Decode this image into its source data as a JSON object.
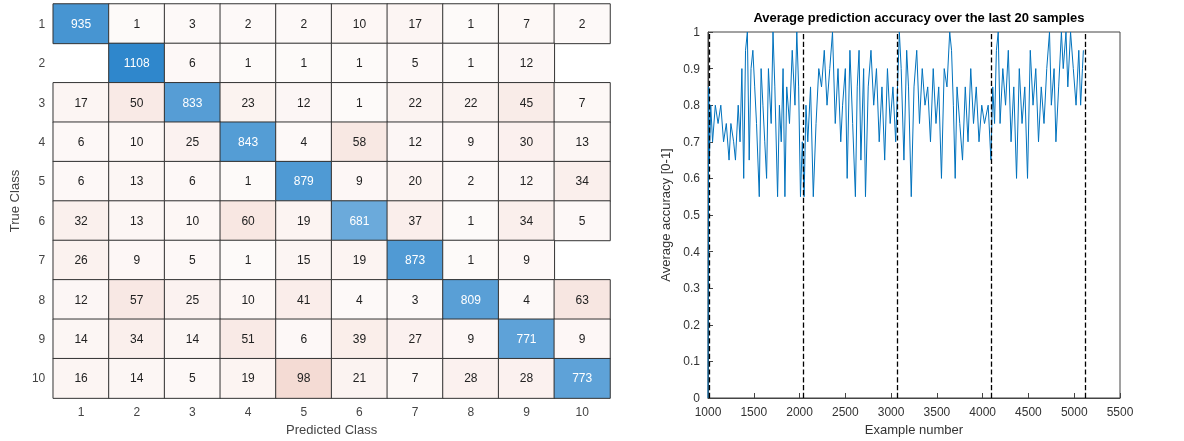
{
  "chart_data": [
    {
      "type": "heatmap",
      "xlabel": "Predicted Class",
      "ylabel": "True Class",
      "categories": [
        "1",
        "2",
        "3",
        "4",
        "5",
        "6",
        "7",
        "8",
        "9",
        "10"
      ],
      "y_categories": [
        "1",
        "2",
        "3",
        "4",
        "5",
        "6",
        "7",
        "8",
        "9",
        "10"
      ],
      "cells": [
        [
          935,
          1,
          3,
          2,
          2,
          10,
          17,
          1,
          7,
          2
        ],
        [
          null,
          1108,
          6,
          1,
          1,
          1,
          5,
          1,
          12,
          null
        ],
        [
          17,
          50,
          833,
          23,
          12,
          1,
          22,
          22,
          45,
          7
        ],
        [
          6,
          10,
          25,
          843,
          4,
          58,
          12,
          9,
          30,
          13
        ],
        [
          6,
          13,
          6,
          1,
          879,
          9,
          20,
          2,
          12,
          34
        ],
        [
          32,
          13,
          10,
          60,
          19,
          681,
          37,
          1,
          34,
          5
        ],
        [
          26,
          9,
          5,
          1,
          15,
          19,
          873,
          1,
          9,
          null
        ],
        [
          12,
          57,
          25,
          10,
          41,
          4,
          3,
          809,
          4,
          63
        ],
        [
          14,
          34,
          14,
          51,
          6,
          39,
          27,
          9,
          771,
          9
        ],
        [
          16,
          14,
          5,
          19,
          98,
          21,
          7,
          28,
          28,
          773
        ]
      ],
      "data_labels": true
    },
    {
      "type": "line",
      "title": "Average prediction accuracy over the last 20 samples",
      "xlabel": "Example number",
      "ylabel": "Average accuracy [0-1]",
      "x": [
        1000,
        1008,
        1015,
        1030,
        1050,
        1080,
        1110,
        1140,
        1170,
        1200,
        1230,
        1250,
        1280,
        1300,
        1330,
        1350,
        1370,
        1390,
        1410,
        1430,
        1450,
        1470,
        1490,
        1510,
        1530,
        1560,
        1580,
        1600,
        1620,
        1640,
        1660,
        1690,
        1710,
        1730,
        1760,
        1780,
        1800,
        1820,
        1840,
        1860,
        1890,
        1920,
        1950,
        1970,
        1990,
        2010,
        2030,
        2050,
        2070,
        2090,
        2120,
        2150,
        2180,
        2210,
        2240,
        2270,
        2300,
        2330,
        2360,
        2390,
        2420,
        2450,
        2470,
        2500,
        2520,
        2550,
        2580,
        2610,
        2630,
        2650,
        2670,
        2700,
        2720,
        2750,
        2780,
        2810,
        2840,
        2870,
        2900,
        2930,
        2960,
        2990,
        3020,
        3050,
        3070,
        3090,
        3110,
        3140,
        3170,
        3190,
        3220,
        3250,
        3280,
        3310,
        3340,
        3370,
        3400,
        3430,
        3460,
        3490,
        3520,
        3550,
        3580,
        3610,
        3640,
        3660,
        3680,
        3700,
        3720,
        3750,
        3780,
        3810,
        3840,
        3870,
        3900,
        3930,
        3960,
        3990,
        4020,
        4060,
        4090,
        4110,
        4130,
        4150,
        4170,
        4190,
        4220,
        4250,
        4280,
        4310,
        4340,
        4370,
        4400,
        4430,
        4460,
        4490,
        4520,
        4550,
        4580,
        4610,
        4640,
        4670,
        4700,
        4730,
        4750,
        4780,
        4800,
        4830,
        4860,
        4880,
        4910,
        4930,
        4960,
        4990,
        5020,
        5050,
        5070,
        5090,
        5100
      ],
      "series": [
        {
          "color": "#0072bd",
          "values": [
            0,
            0.85,
            0.65,
            0.8,
            0.7,
            0.8,
            0.75,
            0.8,
            0.7,
            0.75,
            0.65,
            0.75,
            0.7,
            0.65,
            0.8,
            0.7,
            0.9,
            0.6,
            0.95,
            1,
            0.65,
            0.9,
            0.95,
            0.85,
            0.75,
            0.55,
            0.9,
            0.8,
            0.7,
            0.6,
            0.9,
            0.75,
            1,
            0.85,
            0.55,
            0.8,
            0.7,
            0.9,
            0.55,
            0.85,
            0.75,
            0.95,
            0.8,
            1,
            0.85,
            0.55,
            0.7,
            0.55,
            0.8,
            0.7,
            0.85,
            0.55,
            0.75,
            0.9,
            0.85,
            0.95,
            0.8,
            0.9,
            1,
            0.75,
            0.9,
            0.7,
            0.8,
            0.9,
            0.6,
            0.95,
            0.75,
            0.55,
            0.85,
            0.95,
            0.65,
            0.9,
            0.55,
            0.85,
            0.95,
            0.8,
            0.9,
            0.7,
            0.85,
            0.65,
            0.9,
            0.75,
            0.85,
            0.7,
            0.85,
            1,
            0.9,
            0.65,
            0.95,
            0.85,
            0.55,
            0.85,
            0.95,
            0.75,
            0.9,
            0.8,
            0.85,
            0.7,
            0.9,
            0.75,
            0.85,
            0.6,
            0.9,
            0.85,
            1,
            0.95,
            0.8,
            0.6,
            0.85,
            0.75,
            0.65,
            0.85,
            0.7,
            0.9,
            0.75,
            0.85,
            0.7,
            0.8,
            0.75,
            0.8,
            0.65,
            0.85,
            0.75,
            0.95,
            1,
            0.75,
            0.9,
            0.8,
            0.95,
            0.7,
            0.85,
            0.6,
            0.9,
            0.75,
            0.85,
            0.6,
            0.95,
            0.8,
            0.9,
            0.7,
            0.85,
            0.75,
            0.9,
            1,
            0.8,
            0.9,
            0.7,
            0.85,
            1,
            0.9,
            1,
            0.85,
            1,
            0.9,
            0.8,
            0.95,
            0.8,
            0.9,
            0.95
          ]
        }
      ],
      "xlim": [
        1000,
        5500
      ],
      "xticks": [
        1000,
        1500,
        2000,
        2500,
        3000,
        3500,
        4000,
        4500,
        5000,
        5500
      ],
      "ylim": [
        0,
        1
      ],
      "yticks": [
        0,
        0.1,
        0.2,
        0.3,
        0.4,
        0.5,
        0.6,
        0.7,
        0.8,
        0.9,
        1
      ],
      "ref_lines": [
        {
          "axis": "x",
          "value": 1015,
          "color": "#000000",
          "line_style": "dashed"
        },
        {
          "axis": "x",
          "value": 2040,
          "color": "#000000",
          "line_style": "dashed"
        },
        {
          "axis": "x",
          "value": 3065,
          "color": "#000000",
          "line_style": "dashed"
        },
        {
          "axis": "x",
          "value": 4090,
          "color": "#000000",
          "line_style": "dashed"
        },
        {
          "axis": "x",
          "value": 5115,
          "color": "#000000",
          "line_style": "dashed"
        }
      ],
      "grid": false,
      "marker": "none",
      "line_style": "solid"
    }
  ]
}
